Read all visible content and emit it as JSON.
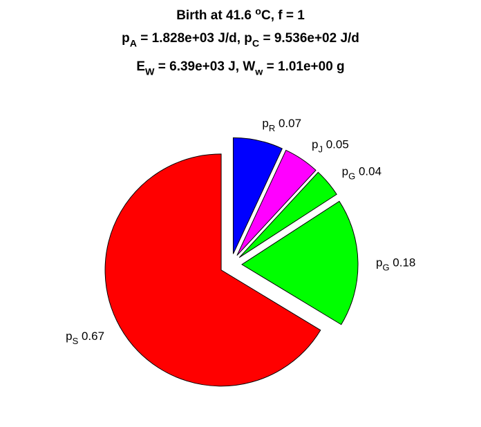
{
  "title": {
    "line1": {
      "a": "Birth at 41.6 ",
      "sup": "o",
      "b": "C, f = 1"
    },
    "line2": {
      "pA": "p",
      "pA_sub": "A",
      "pA_val": " = 1.828e+03 J/d, ",
      "pC": "p",
      "pC_sub": "C",
      "pC_val": " = 9.536e+02 J/d"
    },
    "line3": {
      "E": "E",
      "E_sub": "W",
      "E_val": " = 6.39e+03 J, ",
      "W": "W",
      "W_sub": "w",
      "W_val": " = 1.01e+00 g"
    }
  },
  "chart_data": {
    "type": "pie",
    "exploded": true,
    "slices": [
      {
        "label": "p",
        "sub": "R",
        "value_text": "0.07",
        "value": 0.07,
        "color": "#0000ff"
      },
      {
        "label": "p",
        "sub": "J",
        "value_text": "0.05",
        "value": 0.05,
        "color": "#ff00ff"
      },
      {
        "label": "p",
        "sub": "G",
        "value_text": "0.04",
        "value": 0.04,
        "color": "#00ff00"
      },
      {
        "label": "p",
        "sub": "G",
        "value_text": "0.18",
        "value": 0.18,
        "color": "#00ff00"
      },
      {
        "label": "p",
        "sub": "S",
        "value_text": "0.67",
        "value": 0.67,
        "color": "#ff0000"
      }
    ]
  }
}
